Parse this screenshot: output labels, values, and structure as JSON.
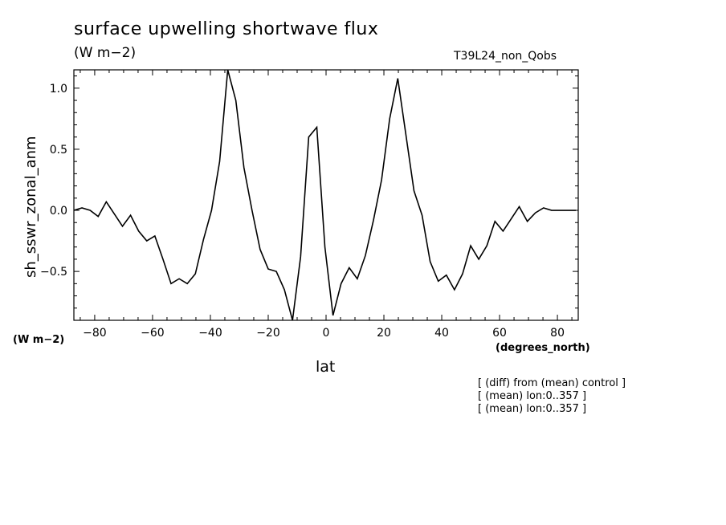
{
  "header": {
    "title": "surface upwelling shortwave flux",
    "units": "(W m−2)",
    "run_name": "T39L24_non_Qobs"
  },
  "axes": {
    "y_label": "sh_sswr_zonal_anm",
    "y_units": "(W m−2)",
    "x_label": "lat",
    "x_units": "(degrees_north)"
  },
  "notes": [
    "[ (diff) from (mean) control ]",
    "[ (mean) lon:0..357 ]",
    "[ (mean) lon:0..357 ]"
  ],
  "chart_data": {
    "type": "line",
    "title": "surface upwelling shortwave flux",
    "xlabel": "lat",
    "ylabel": "sh_sswr_zonal_anm",
    "xlim": [
      -87.2,
      87.2
    ],
    "ylim": [
      -0.9,
      1.15
    ],
    "x_ticks": [
      -80,
      -60,
      -40,
      -20,
      0,
      20,
      40,
      60,
      80
    ],
    "x_tick_labels": [
      "−80",
      "−60",
      "−40",
      "−20",
      "0",
      "20",
      "40",
      "60",
      "80"
    ],
    "y_ticks": [
      -0.5,
      0.0,
      0.5,
      1.0
    ],
    "y_tick_labels": [
      "−0.5",
      "0.0",
      "0.5",
      "1.0"
    ],
    "grid": false,
    "series": [
      {
        "x": [
          -87.2,
          -84.4,
          -81.6,
          -78.8,
          -76.0,
          -73.2,
          -70.4,
          -67.6,
          -64.8,
          -62.0,
          -59.2,
          -56.4,
          -53.6,
          -50.8,
          -48.0,
          -45.2,
          -42.4,
          -39.6,
          -36.8,
          -34.0,
          -31.2,
          -28.4,
          -25.6,
          -22.8,
          -20.0,
          -17.2,
          -14.4,
          -11.6,
          -8.8,
          -6.0,
          -3.2,
          -0.4,
          2.4,
          5.2,
          8.0,
          10.8,
          13.6,
          16.4,
          19.2,
          22.0,
          24.8,
          27.6,
          30.4,
          33.2,
          36.0,
          38.8,
          41.6,
          44.4,
          47.2,
          50.0,
          52.8,
          55.6,
          58.4,
          61.2,
          64.0,
          66.8,
          69.6,
          72.4,
          75.2,
          78.0,
          80.8,
          83.6,
          86.4
        ],
        "y": [
          0.0,
          0.02,
          0.0,
          -0.05,
          0.07,
          -0.03,
          -0.13,
          -0.04,
          -0.17,
          -0.25,
          -0.21,
          -0.4,
          -0.6,
          -0.56,
          -0.6,
          -0.52,
          -0.24,
          0.0,
          0.4,
          1.15,
          0.9,
          0.35,
          0.0,
          -0.32,
          -0.48,
          -0.5,
          -0.65,
          -0.9,
          -0.38,
          0.6,
          0.68,
          -0.3,
          -0.86,
          -0.6,
          -0.47,
          -0.56,
          -0.37,
          -0.08,
          0.25,
          0.75,
          1.08,
          0.62,
          0.16,
          -0.04,
          -0.42,
          -0.58,
          -0.53,
          -0.65,
          -0.52,
          -0.29,
          -0.4,
          -0.29,
          -0.09,
          -0.17,
          -0.07,
          0.03,
          -0.09,
          -0.02,
          0.02,
          0.0,
          0.0,
          0.0,
          0.0
        ]
      }
    ]
  }
}
